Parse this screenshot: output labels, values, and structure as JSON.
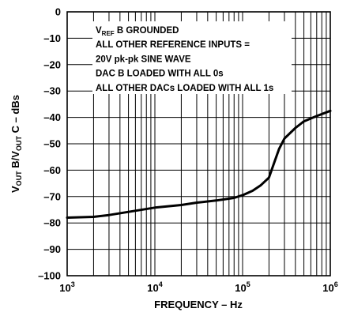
{
  "chart_data": {
    "type": "line",
    "title": "",
    "xlabel": "FREQUENCY – Hz",
    "ylabel": {
      "parts": [
        {
          "text": "V",
          "sub": false
        },
        {
          "text": "OUT",
          "sub": true
        },
        {
          "text": " B/V",
          "sub": false
        },
        {
          "text": "OUT",
          "sub": true
        },
        {
          "text": " C – dBs",
          "sub": false
        }
      ]
    },
    "x_scale": "log",
    "xlim": [
      1000,
      1000000
    ],
    "ylim": [
      -100,
      0
    ],
    "grid": true,
    "y_ticks": [
      "0",
      "–10",
      "–20",
      "–30",
      "–40",
      "–50",
      "–60",
      "–70",
      "–80",
      "–90",
      "–100"
    ],
    "x_ticks": [
      {
        "base": "10",
        "exp": "3"
      },
      {
        "base": "10",
        "exp": "4"
      },
      {
        "base": "10",
        "exp": "5"
      },
      {
        "base": "10",
        "exp": "6"
      }
    ],
    "annotations": [
      {
        "parts": [
          {
            "text": "V",
            "sub": false
          },
          {
            "text": "REF",
            "sub": true
          },
          {
            "text": " B GROUNDED",
            "sub": false
          }
        ]
      },
      {
        "parts": [
          {
            "text": "ALL OTHER REFERENCE INPUTS =",
            "sub": false
          }
        ]
      },
      {
        "parts": [
          {
            "text": "20V pk-pk SINE WAVE",
            "sub": false
          }
        ]
      },
      {
        "parts": [
          {
            "text": "DAC B LOADED WITH ALL 0s",
            "sub": false
          }
        ]
      },
      {
        "parts": [
          {
            "text": "ALL OTHER DACs LOADED WITH ALL 1s",
            "sub": false
          }
        ]
      }
    ],
    "series": [
      {
        "x": [
          1000,
          2000,
          3000,
          5000,
          10000,
          20000,
          30000,
          50000,
          80000,
          100000,
          130000,
          160000,
          200000,
          230000,
          260000,
          300000,
          400000,
          500000,
          700000,
          1000000
        ],
        "y": [
          -78,
          -77.7,
          -77,
          -75.8,
          -74.2,
          -73.2,
          -72.3,
          -71.5,
          -70.5,
          -69.5,
          -67.8,
          -65.8,
          -62.8,
          -57,
          -52,
          -48,
          -44,
          -41.5,
          -39.5,
          -37.5
        ]
      }
    ]
  }
}
